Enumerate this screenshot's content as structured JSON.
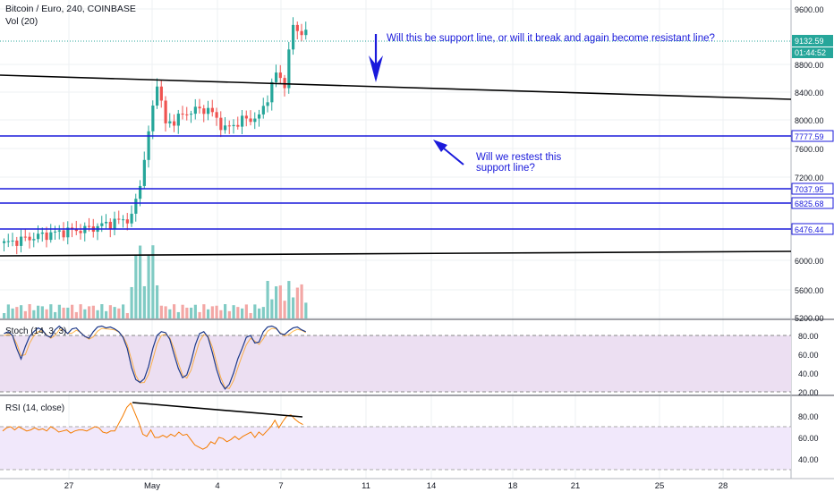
{
  "header": {
    "symbol": "Bitcoin / Euro, 240, COINBASE",
    "volume_label": "Vol (20)"
  },
  "colors": {
    "up": "#26a69a",
    "down": "#ef5350",
    "up_vol": "#80cbc4",
    "down_vol": "#f3a7a5",
    "line_blue": "#1a1adb",
    "trend_black": "#000000",
    "annotation_blue": "#1a1adb",
    "stoch_fill": "#ecdff2",
    "rsi_fill": "#f1e8fb",
    "rsi_line": "#f57c00",
    "last_price": "#26a69a"
  },
  "price_axis": {
    "ticks": [
      "9600.00",
      "8800.00",
      "8400.00",
      "8000.00",
      "7600.00",
      "7200.00",
      "6000.00",
      "5600.00",
      "5200.00"
    ],
    "last_price": "9132.59",
    "countdown": "01:44:52",
    "hline_labels": [
      "7777.59",
      "7037.95",
      "6825.68",
      "6476.44"
    ]
  },
  "annotations": {
    "top_text": "Will this be support line, or will it break and again become resistant line?",
    "mid_text_line1": "Will we restest this",
    "mid_text_line2": "support line?"
  },
  "stoch": {
    "label": "Stoch (14, 3, 3)",
    "ticks": [
      "80.00",
      "60.00",
      "40.00",
      "20.00"
    ]
  },
  "rsi": {
    "label": "RSI (14, close)",
    "ticks": [
      "80.00",
      "60.00",
      "40.00"
    ]
  },
  "time_axis": {
    "labels": [
      "27",
      "May",
      "4",
      "7",
      "11",
      "14",
      "18",
      "21",
      "25",
      "28"
    ]
  },
  "chart_data": {
    "type": "candlestick",
    "title": "Bitcoin / Euro, 240, COINBASE",
    "series": [
      {
        "name": "Stoch %K",
        "values": [
          82,
          84,
          80,
          66,
          55,
          68,
          79,
          84,
          88,
          86,
          80,
          78,
          86,
          90,
          86,
          82,
          87,
          88,
          83,
          79,
          77,
          84,
          89,
          90,
          88,
          89,
          87,
          84,
          78,
          66,
          46,
          33,
          30,
          34,
          47,
          66,
          80,
          84,
          83,
          76,
          60,
          45,
          35,
          38,
          52,
          70,
          82,
          84,
          78,
          62,
          44,
          30,
          23,
          28,
          40,
          55,
          66,
          78,
          80,
          72,
          73,
          84,
          89,
          90,
          88,
          82,
          81,
          85,
          88,
          89,
          86,
          84
        ]
      },
      {
        "name": "RSI",
        "values": [
          66,
          69,
          70,
          67,
          70,
          68,
          66,
          67,
          69,
          67,
          68,
          66,
          70,
          68,
          65,
          66,
          67,
          64,
          66,
          67,
          67,
          66,
          68,
          70,
          69,
          65,
          64,
          66,
          66,
          73,
          80,
          88,
          92,
          83,
          74,
          63,
          61,
          67,
          60,
          60,
          62,
          60,
          63,
          61,
          65,
          62,
          63,
          58,
          53,
          51,
          49,
          51,
          56,
          54,
          60,
          59,
          56,
          58,
          61,
          58,
          61,
          63,
          65,
          60,
          65,
          62,
          66,
          70,
          76,
          69,
          75,
          80,
          81,
          77,
          74,
          72
        ]
      }
    ],
    "horizontal_levels": [
      7777.59,
      7037.95,
      6825.68,
      6476.44
    ],
    "last_price": 9132.59
  }
}
